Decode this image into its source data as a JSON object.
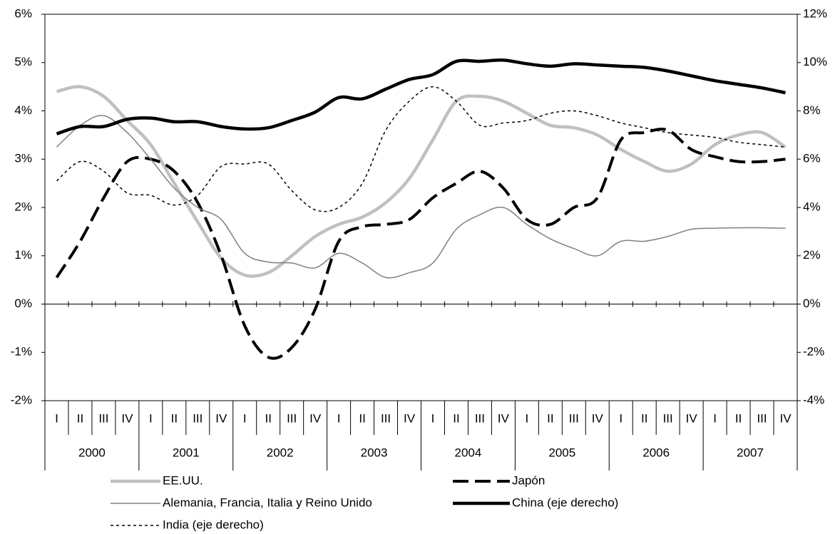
{
  "chart_data": {
    "type": "line",
    "categories": [
      "I",
      "II",
      "III",
      "IV",
      "I",
      "II",
      "III",
      "IV",
      "I",
      "II",
      "III",
      "IV",
      "I",
      "II",
      "III",
      "IV",
      "I",
      "II",
      "III",
      "IV",
      "I",
      "II",
      "III",
      "IV",
      "I",
      "II",
      "III",
      "IV",
      "I",
      "II",
      "III",
      "IV"
    ],
    "category_groups": [
      "2000",
      "2001",
      "2002",
      "2003",
      "2004",
      "2005",
      "2006",
      "2007"
    ],
    "ylim": [
      -2,
      6
    ],
    "yticks": [
      {
        "value": -2,
        "label": "-2%"
      },
      {
        "value": -1,
        "label": "-1%"
      },
      {
        "value": 0,
        "label": "0%"
      },
      {
        "value": 1,
        "label": "1%"
      },
      {
        "value": 2,
        "label": "2%"
      },
      {
        "value": 3,
        "label": "3%"
      },
      {
        "value": 4,
        "label": "4%"
      },
      {
        "value": 5,
        "label": "5%"
      },
      {
        "value": 6,
        "label": "6%"
      }
    ],
    "y2lim": [
      -4,
      12
    ],
    "y2ticks": [
      {
        "value": -4,
        "label": "-4%"
      },
      {
        "value": -2,
        "label": "-2%"
      },
      {
        "value": 0,
        "label": "0%"
      },
      {
        "value": 2,
        "label": "2%"
      },
      {
        "value": 4,
        "label": "4%"
      },
      {
        "value": 6,
        "label": "6%"
      },
      {
        "value": 8,
        "label": "8%"
      },
      {
        "value": 10,
        "label": "10%"
      },
      {
        "value": 12,
        "label": "12%"
      }
    ],
    "series": [
      {
        "name": "EE.UU.",
        "color": "#c0c0c0",
        "line_style": "thick",
        "values": [
          4.4,
          4.5,
          4.3,
          3.8,
          3.3,
          2.5,
          1.7,
          0.95,
          0.6,
          0.65,
          1.0,
          1.4,
          1.65,
          1.8,
          2.1,
          2.6,
          3.4,
          4.2,
          4.3,
          4.2,
          3.95,
          3.7,
          3.65,
          3.5,
          3.2,
          2.95,
          2.75,
          2.9,
          3.3,
          3.5,
          3.55,
          3.25
        ]
      },
      {
        "name": "Japón",
        "color": "#000000",
        "line_style": "dashed",
        "values": [
          0.55,
          1.3,
          2.2,
          2.95,
          3.0,
          2.75,
          2.1,
          1.0,
          -0.45,
          -1.1,
          -0.9,
          -0.1,
          1.3,
          1.6,
          1.65,
          1.75,
          2.2,
          2.5,
          2.75,
          2.4,
          1.75,
          1.65,
          2.0,
          2.2,
          3.4,
          3.55,
          3.6,
          3.2,
          3.05,
          2.95,
          2.95,
          3.0
        ]
      },
      {
        "name": "Alemania, Francia, Italia y Reino Unido",
        "color": "#808080",
        "line_style": "thin",
        "values": [
          3.25,
          3.7,
          3.9,
          3.55,
          3.0,
          2.4,
          2.0,
          1.75,
          1.05,
          0.87,
          0.85,
          0.75,
          1.05,
          0.85,
          0.55,
          0.65,
          0.85,
          1.55,
          1.85,
          2.0,
          1.65,
          1.35,
          1.15,
          1.0,
          1.3,
          1.3,
          1.4,
          1.55,
          1.57,
          1.58,
          1.58,
          1.57
        ]
      },
      {
        "name": "China (eje derecho)",
        "color": "#000000",
        "line_style": "thick",
        "axis": "y2",
        "values": [
          7.05,
          7.35,
          7.35,
          7.65,
          7.7,
          7.55,
          7.55,
          7.35,
          7.25,
          7.3,
          7.6,
          7.95,
          8.55,
          8.5,
          8.9,
          9.3,
          9.5,
          10.05,
          10.05,
          10.1,
          9.95,
          9.85,
          9.95,
          9.9,
          9.85,
          9.8,
          9.65,
          9.45,
          9.25,
          9.1,
          8.95,
          8.75
        ]
      },
      {
        "name": "India (eje derecho)",
        "color": "#000000",
        "line_style": "dotted",
        "axis": "y2",
        "values": [
          5.1,
          5.9,
          5.5,
          4.6,
          4.5,
          4.1,
          4.5,
          5.7,
          5.8,
          5.8,
          4.7,
          3.9,
          4.0,
          5.0,
          7.2,
          8.4,
          9.0,
          8.4,
          7.4,
          7.5,
          7.6,
          7.9,
          8.0,
          7.8,
          7.5,
          7.3,
          7.1,
          7.0,
          6.9,
          6.7,
          6.6,
          6.5
        ]
      }
    ]
  }
}
